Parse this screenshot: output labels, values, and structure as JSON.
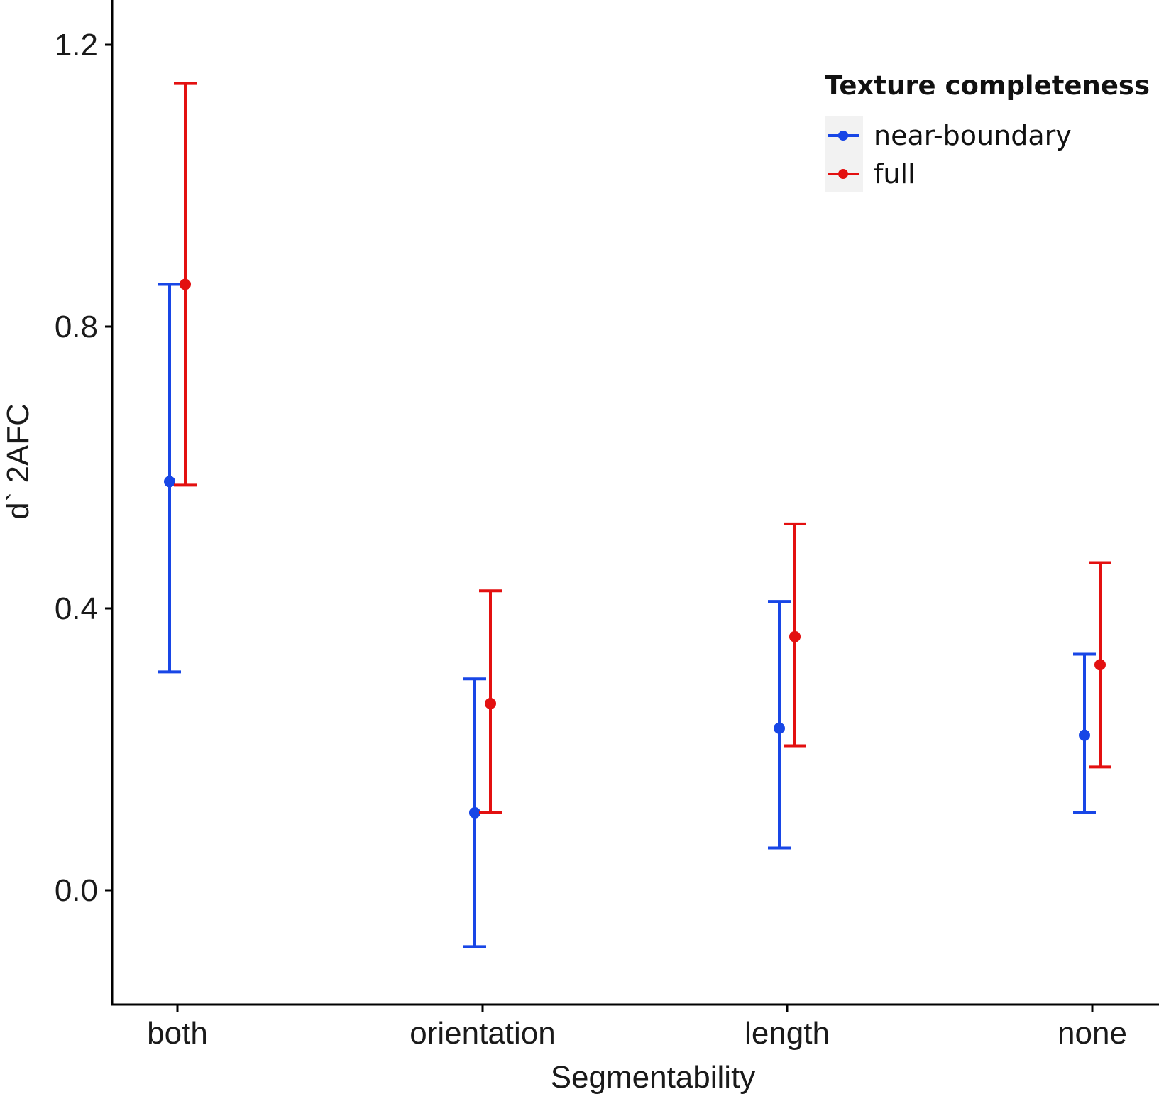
{
  "chart_data": {
    "type": "scatter",
    "subtype": "point-with-error-bars",
    "xlabel": "Segmentability",
    "ylabel": "d` 2AFC",
    "categories": [
      "both",
      "orientation",
      "length",
      "none"
    ],
    "ylim": [
      -0.16,
      1.24
    ],
    "yticks": [
      0.0,
      0.4,
      0.8,
      1.2
    ],
    "ytick_labels": [
      "0.0",
      "0.4",
      "0.8",
      "1.2"
    ],
    "grid": false,
    "legend": {
      "title": "Texture completeness",
      "position": "top-right",
      "entries": [
        "near-boundary",
        "full"
      ]
    },
    "series": [
      {
        "name": "near-boundary",
        "color": "#1846e6",
        "values": [
          0.58,
          0.11,
          0.23,
          0.22
        ],
        "lower": [
          0.31,
          -0.08,
          0.06,
          0.11
        ],
        "upper": [
          0.86,
          0.3,
          0.41,
          0.335
        ]
      },
      {
        "name": "full",
        "color": "#e31010",
        "values": [
          0.86,
          0.265,
          0.36,
          0.32
        ],
        "lower": [
          0.575,
          0.11,
          0.205,
          0.175
        ],
        "upper": [
          1.145,
          0.425,
          0.52,
          0.465
        ]
      }
    ]
  }
}
